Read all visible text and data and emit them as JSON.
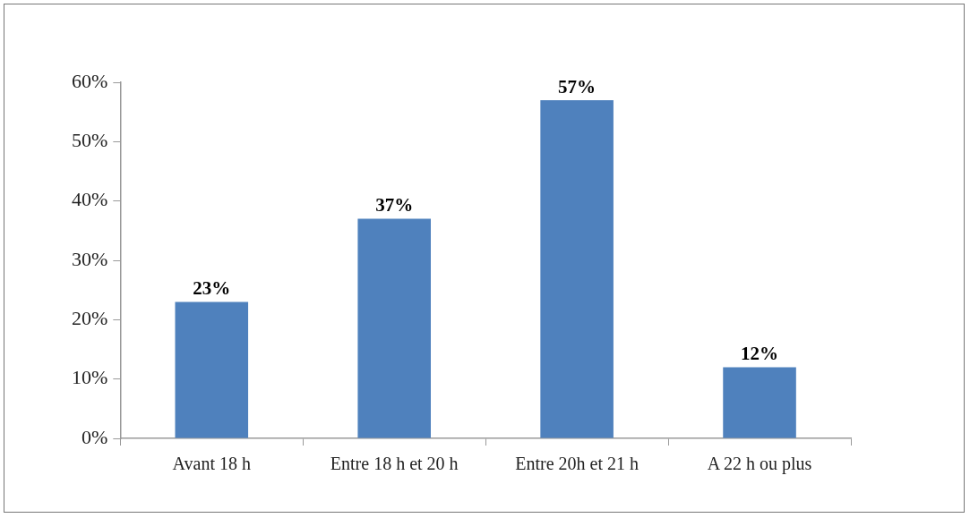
{
  "chart_data": {
    "type": "bar",
    "categories": [
      "Avant 18 h",
      "Entre 18 h et 20 h",
      "Entre 20h et 21 h",
      "A 22 h ou plus"
    ],
    "values": [
      23,
      37,
      57,
      12
    ],
    "color": "#4f81bd",
    "value_labels": [
      "23%",
      "37%",
      "57%",
      "12%"
    ],
    "ylim": [
      0,
      60
    ],
    "yticks": [
      {
        "value": 0,
        "label": "0%"
      },
      {
        "value": 10,
        "label": "10%"
      },
      {
        "value": 20,
        "label": "20%"
      },
      {
        "value": 30,
        "label": "30%"
      },
      {
        "value": 40,
        "label": "40%"
      },
      {
        "value": 50,
        "label": "50%"
      },
      {
        "value": 60,
        "label": "60%"
      }
    ]
  }
}
